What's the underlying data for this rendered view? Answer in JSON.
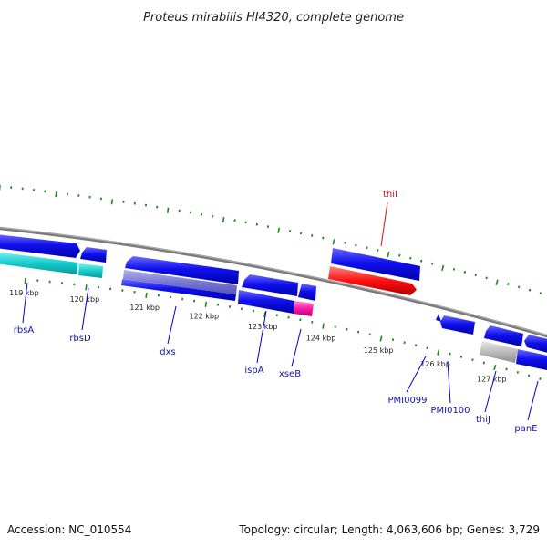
{
  "title": "Proteus mirabilis HI4320, complete genome",
  "footer": {
    "accession": "Accession: NC_010554",
    "topology": "Topology: circular; Length: 4,063,606 bp; Genes: 3,729"
  },
  "tick_labels": [
    "119 kbp",
    "120 kbp",
    "121 kbp",
    "122 kbp",
    "123 kbp",
    "124 kbp",
    "125 kbp",
    "126 kbp",
    "127 kbp"
  ],
  "genes": [
    {
      "id": "rbsA",
      "label": "rbsA",
      "color": "#1515a0"
    },
    {
      "id": "rbsD",
      "label": "rbsD",
      "color": "#1515a0"
    },
    {
      "id": "dxs",
      "label": "dxs",
      "color": "#1515a0"
    },
    {
      "id": "ispA",
      "label": "ispA",
      "color": "#1515a0"
    },
    {
      "id": "xseB",
      "label": "xseB",
      "color": "#1515a0"
    },
    {
      "id": "thiI",
      "label": "thiI",
      "color": "#dd1010"
    },
    {
      "id": "PMI0099",
      "label": "PMI0099",
      "color": "#1515a0"
    },
    {
      "id": "PMI0100",
      "label": "PMI0100",
      "color": "#1515a0"
    },
    {
      "id": "thiJ",
      "label": "thiJ",
      "color": "#1515a0"
    },
    {
      "id": "panE",
      "label": "panE",
      "color": "#1515a0"
    }
  ],
  "colors": {
    "cds_blue": "#0a0ae6",
    "rna_cyan": "#14cccc",
    "red": "#ff1a1a",
    "magenta": "#ff1aa8",
    "gray": "#bbbbbb",
    "backbone": "#808080",
    "tick_green": "#1a8a1a"
  }
}
